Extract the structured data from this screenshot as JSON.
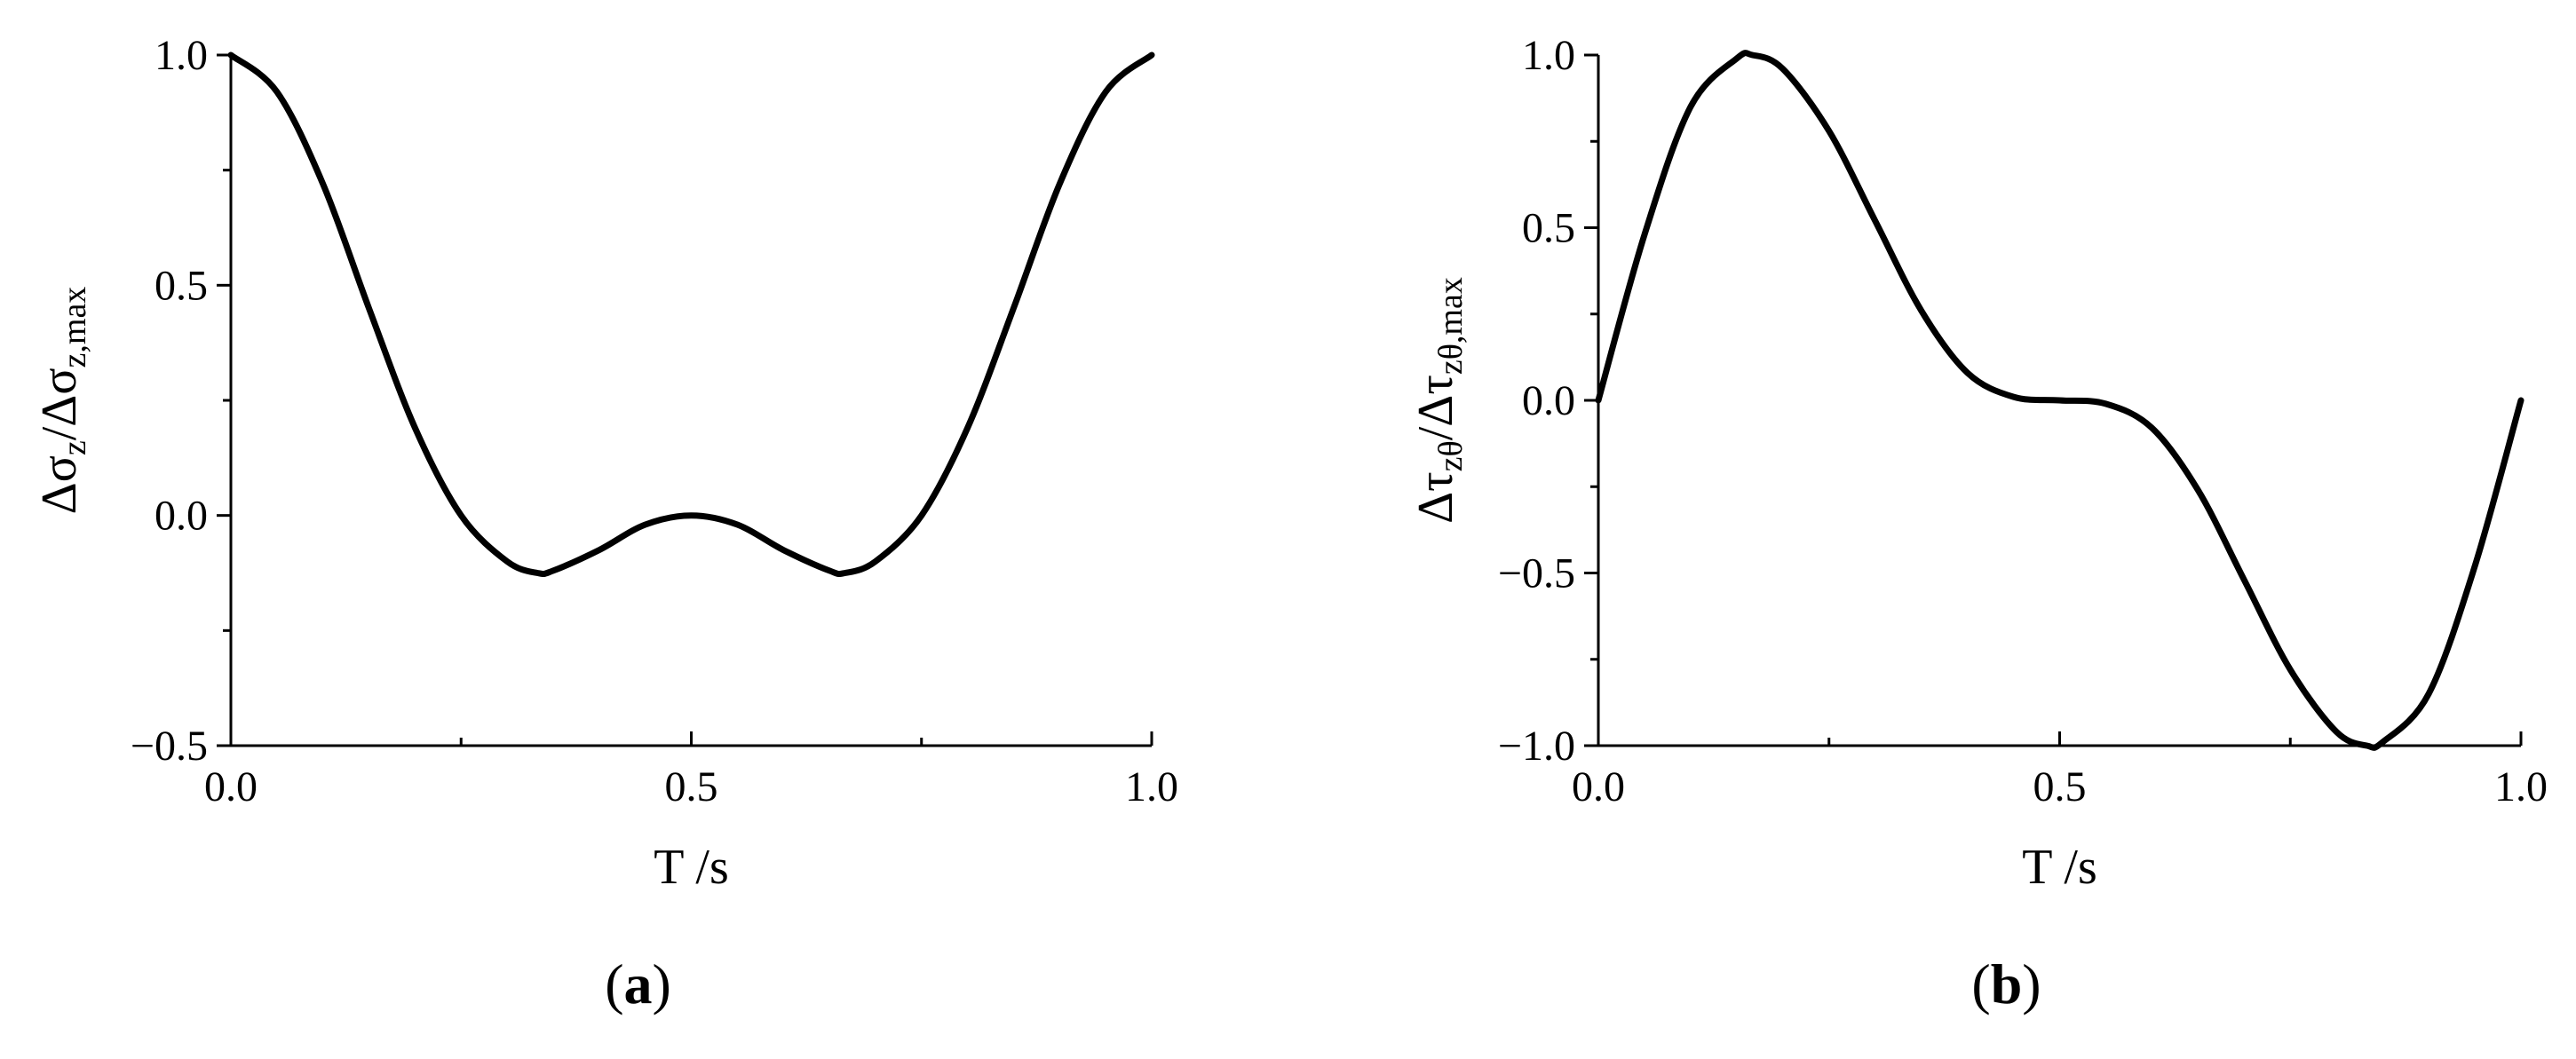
{
  "chart_data": [
    {
      "type": "line",
      "panel_label": "a",
      "xlabel": "T /s",
      "ylabel": {
        "parts": [
          "Δσ",
          "z",
          "/Δσ",
          "z,max"
        ]
      },
      "xlim": [
        0.0,
        1.0
      ],
      "ylim": [
        -0.5,
        1.0
      ],
      "xticks": [
        0.0,
        0.5,
        1.0
      ],
      "xtick_labels": [
        "0.0",
        "0.5",
        "1.0"
      ],
      "yticks": [
        -0.5,
        0.0,
        0.5,
        1.0
      ],
      "ytick_labels": [
        "−0.5",
        "0.0",
        "0.5",
        "1.0"
      ],
      "grid": false,
      "series": [
        {
          "color": "#000000",
          "x": [
            0.0,
            0.05,
            0.1,
            0.15,
            0.2,
            0.25,
            0.3,
            0.333,
            0.35,
            0.4,
            0.45,
            0.5,
            0.55,
            0.6,
            0.65,
            0.667,
            0.7,
            0.75,
            0.8,
            0.85,
            0.9,
            0.95,
            1.0
          ],
          "y": [
            1.0,
            0.92,
            0.72,
            0.45,
            0.19,
            0.0,
            -0.1,
            -0.125,
            -0.12,
            -0.075,
            -0.02,
            0.0,
            -0.02,
            -0.075,
            -0.12,
            -0.125,
            -0.1,
            0.0,
            0.19,
            0.45,
            0.72,
            0.92,
            1.0
          ]
        }
      ]
    },
    {
      "type": "line",
      "panel_label": "b",
      "xlabel": "T /s",
      "ylabel": {
        "parts": [
          "Δτ",
          "zθ",
          "/Δτ",
          "zθ,max"
        ]
      },
      "xlim": [
        0.0,
        1.0
      ],
      "ylim": [
        -1.0,
        1.0
      ],
      "xticks": [
        0.0,
        0.5,
        1.0
      ],
      "xtick_labels": [
        "0.0",
        "0.5",
        "1.0"
      ],
      "yticks": [
        -1.0,
        -0.5,
        0.0,
        0.5,
        1.0
      ],
      "ytick_labels": [
        "−1.0",
        "−0.5",
        "0.0",
        "0.5",
        "1.0"
      ],
      "grid": false,
      "series": [
        {
          "color": "#000000",
          "x": [
            0.0,
            0.05,
            0.1,
            0.15,
            0.167,
            0.2,
            0.25,
            0.3,
            0.35,
            0.4,
            0.45,
            0.5,
            0.55,
            0.6,
            0.65,
            0.7,
            0.75,
            0.8,
            0.833,
            0.85,
            0.9,
            0.95,
            1.0
          ],
          "y": [
            0.0,
            0.48,
            0.85,
            0.99,
            1.0,
            0.96,
            0.78,
            0.52,
            0.26,
            0.08,
            0.01,
            0.0,
            -0.01,
            -0.08,
            -0.26,
            -0.52,
            -0.78,
            -0.96,
            -1.0,
            -0.99,
            -0.85,
            -0.48,
            0.0
          ]
        }
      ]
    }
  ]
}
